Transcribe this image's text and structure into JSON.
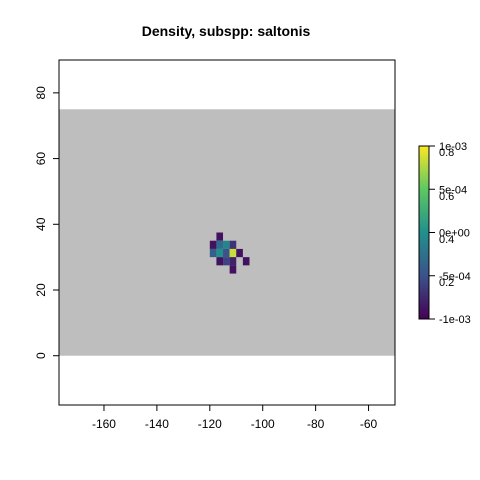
{
  "chart_data": {
    "type": "heatmap",
    "title": "Density, subspp: saltonis",
    "xlabel": "",
    "ylabel": "",
    "xlim": [
      -177,
      -50
    ],
    "ylim": [
      -15,
      90
    ],
    "x_ticks": [
      -160,
      -140,
      -120,
      -100,
      -80,
      -60
    ],
    "y_ticks": [
      0,
      20,
      40,
      60,
      80
    ],
    "background_region": {
      "x": [
        -177,
        -50
      ],
      "y": [
        0,
        75
      ],
      "color": "#bebebe"
    },
    "cell_size": 2.5,
    "cells": [
      {
        "x": -116.25,
        "y": 36.25,
        "value": 0.05
      },
      {
        "x": -118.75,
        "y": 33.75,
        "value": 0.05
      },
      {
        "x": -116.25,
        "y": 33.75,
        "value": 0.35
      },
      {
        "x": -113.75,
        "y": 33.75,
        "value": 0.45
      },
      {
        "x": -111.25,
        "y": 33.75,
        "value": 0.15
      },
      {
        "x": -118.75,
        "y": 31.25,
        "value": 0.3
      },
      {
        "x": -116.25,
        "y": 31.25,
        "value": 0.5
      },
      {
        "x": -113.75,
        "y": 31.25,
        "value": 0.25
      },
      {
        "x": -111.25,
        "y": 31.25,
        "value": 0.92
      },
      {
        "x": -108.75,
        "y": 31.25,
        "value": 0.05
      },
      {
        "x": -116.25,
        "y": 28.75,
        "value": 0.05
      },
      {
        "x": -113.75,
        "y": 28.75,
        "value": 0.2
      },
      {
        "x": -111.25,
        "y": 28.75,
        "value": 0.1
      },
      {
        "x": -106.25,
        "y": 28.75,
        "value": 0.05
      },
      {
        "x": -111.25,
        "y": 26.25,
        "value": 0.05
      }
    ],
    "colorbar": {
      "palette": [
        "#440154",
        "#3b528b",
        "#21908c",
        "#5dc863",
        "#fde725"
      ],
      "labels_left": [
        "0.2",
        "0.4",
        "0.6",
        "0.8"
      ],
      "labels_right": [
        "-1e-03",
        "-5e-04",
        "0e+00",
        "5e-04",
        "1e-03"
      ]
    }
  }
}
